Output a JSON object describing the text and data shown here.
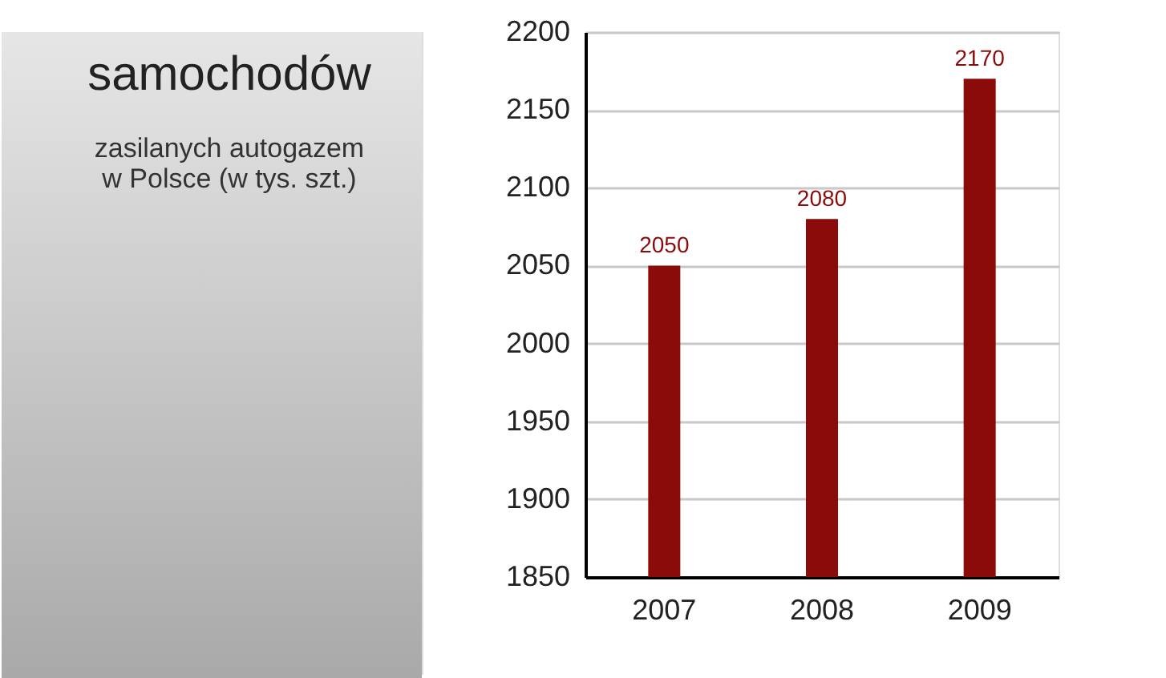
{
  "chart_data": {
    "type": "bar",
    "title": "samochodów",
    "subtitle": "zasilanych autogazem\nw Polsce (w tys. szt.)",
    "categories": [
      "2007",
      "2008",
      "2009"
    ],
    "values": [
      2050,
      2080,
      2170
    ],
    "color": "#8b0a0a",
    "ylim": [
      1850,
      2200
    ],
    "yticks": [
      1850,
      1900,
      1950,
      2000,
      2050,
      2100,
      2150,
      2200
    ],
    "grid": "y",
    "data_labels": true
  }
}
